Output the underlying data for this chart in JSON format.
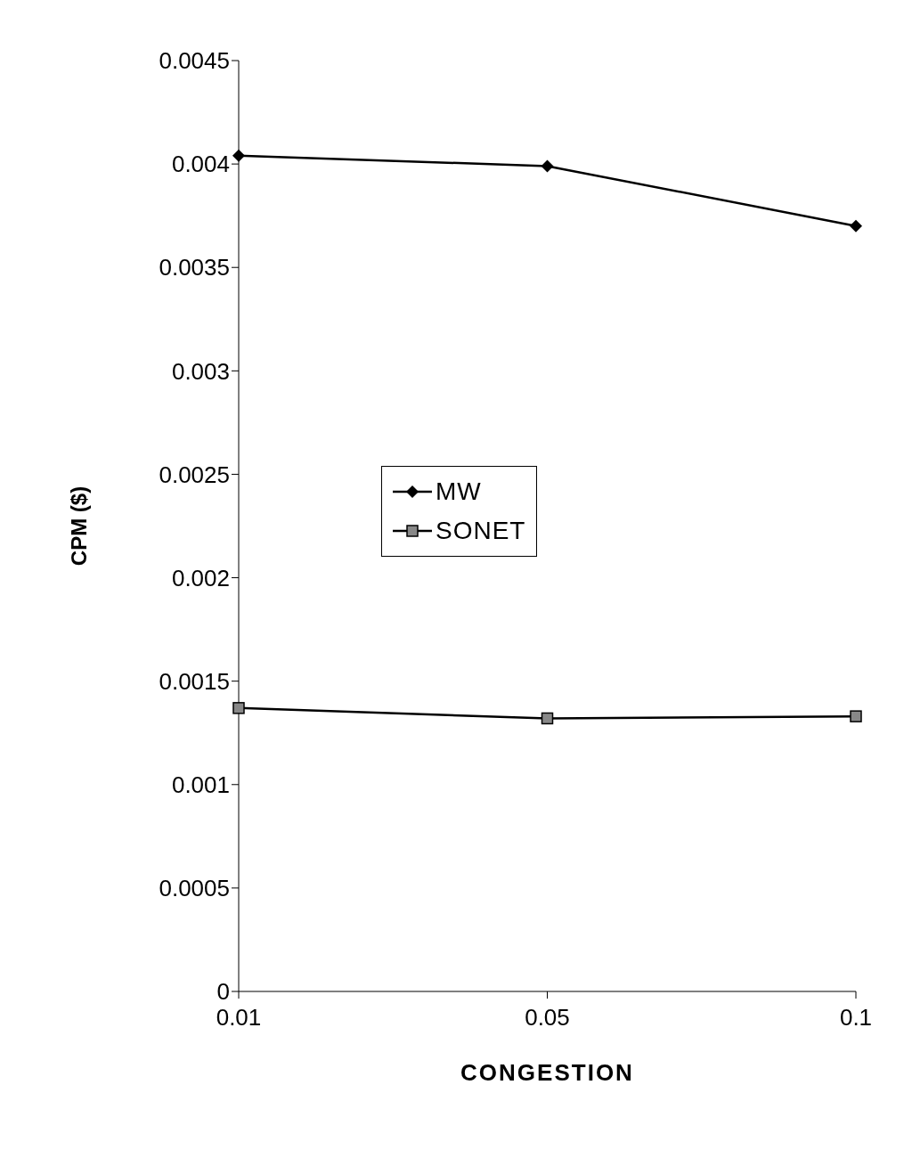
{
  "chart_data": {
    "type": "line",
    "xlabel": "CONGESTION",
    "ylabel": "CPM ($)",
    "categories": [
      "0.01",
      "0.05",
      "0.1"
    ],
    "series": [
      {
        "name": "MW",
        "color": "#000000",
        "marker": "diamond",
        "values": [
          0.00404,
          0.00399,
          0.0037
        ]
      },
      {
        "name": "SONET",
        "color": "#000000",
        "marker": "square",
        "values": [
          0.00137,
          0.00132,
          0.00133
        ]
      }
    ],
    "ylim": [
      0,
      0.0045
    ],
    "yticks": [
      0,
      0.0005,
      0.001,
      0.0015,
      0.002,
      0.0025,
      0.003,
      0.0035,
      0.004,
      0.0045
    ],
    "grid": false,
    "legend": "center",
    "line_style": "solid"
  }
}
